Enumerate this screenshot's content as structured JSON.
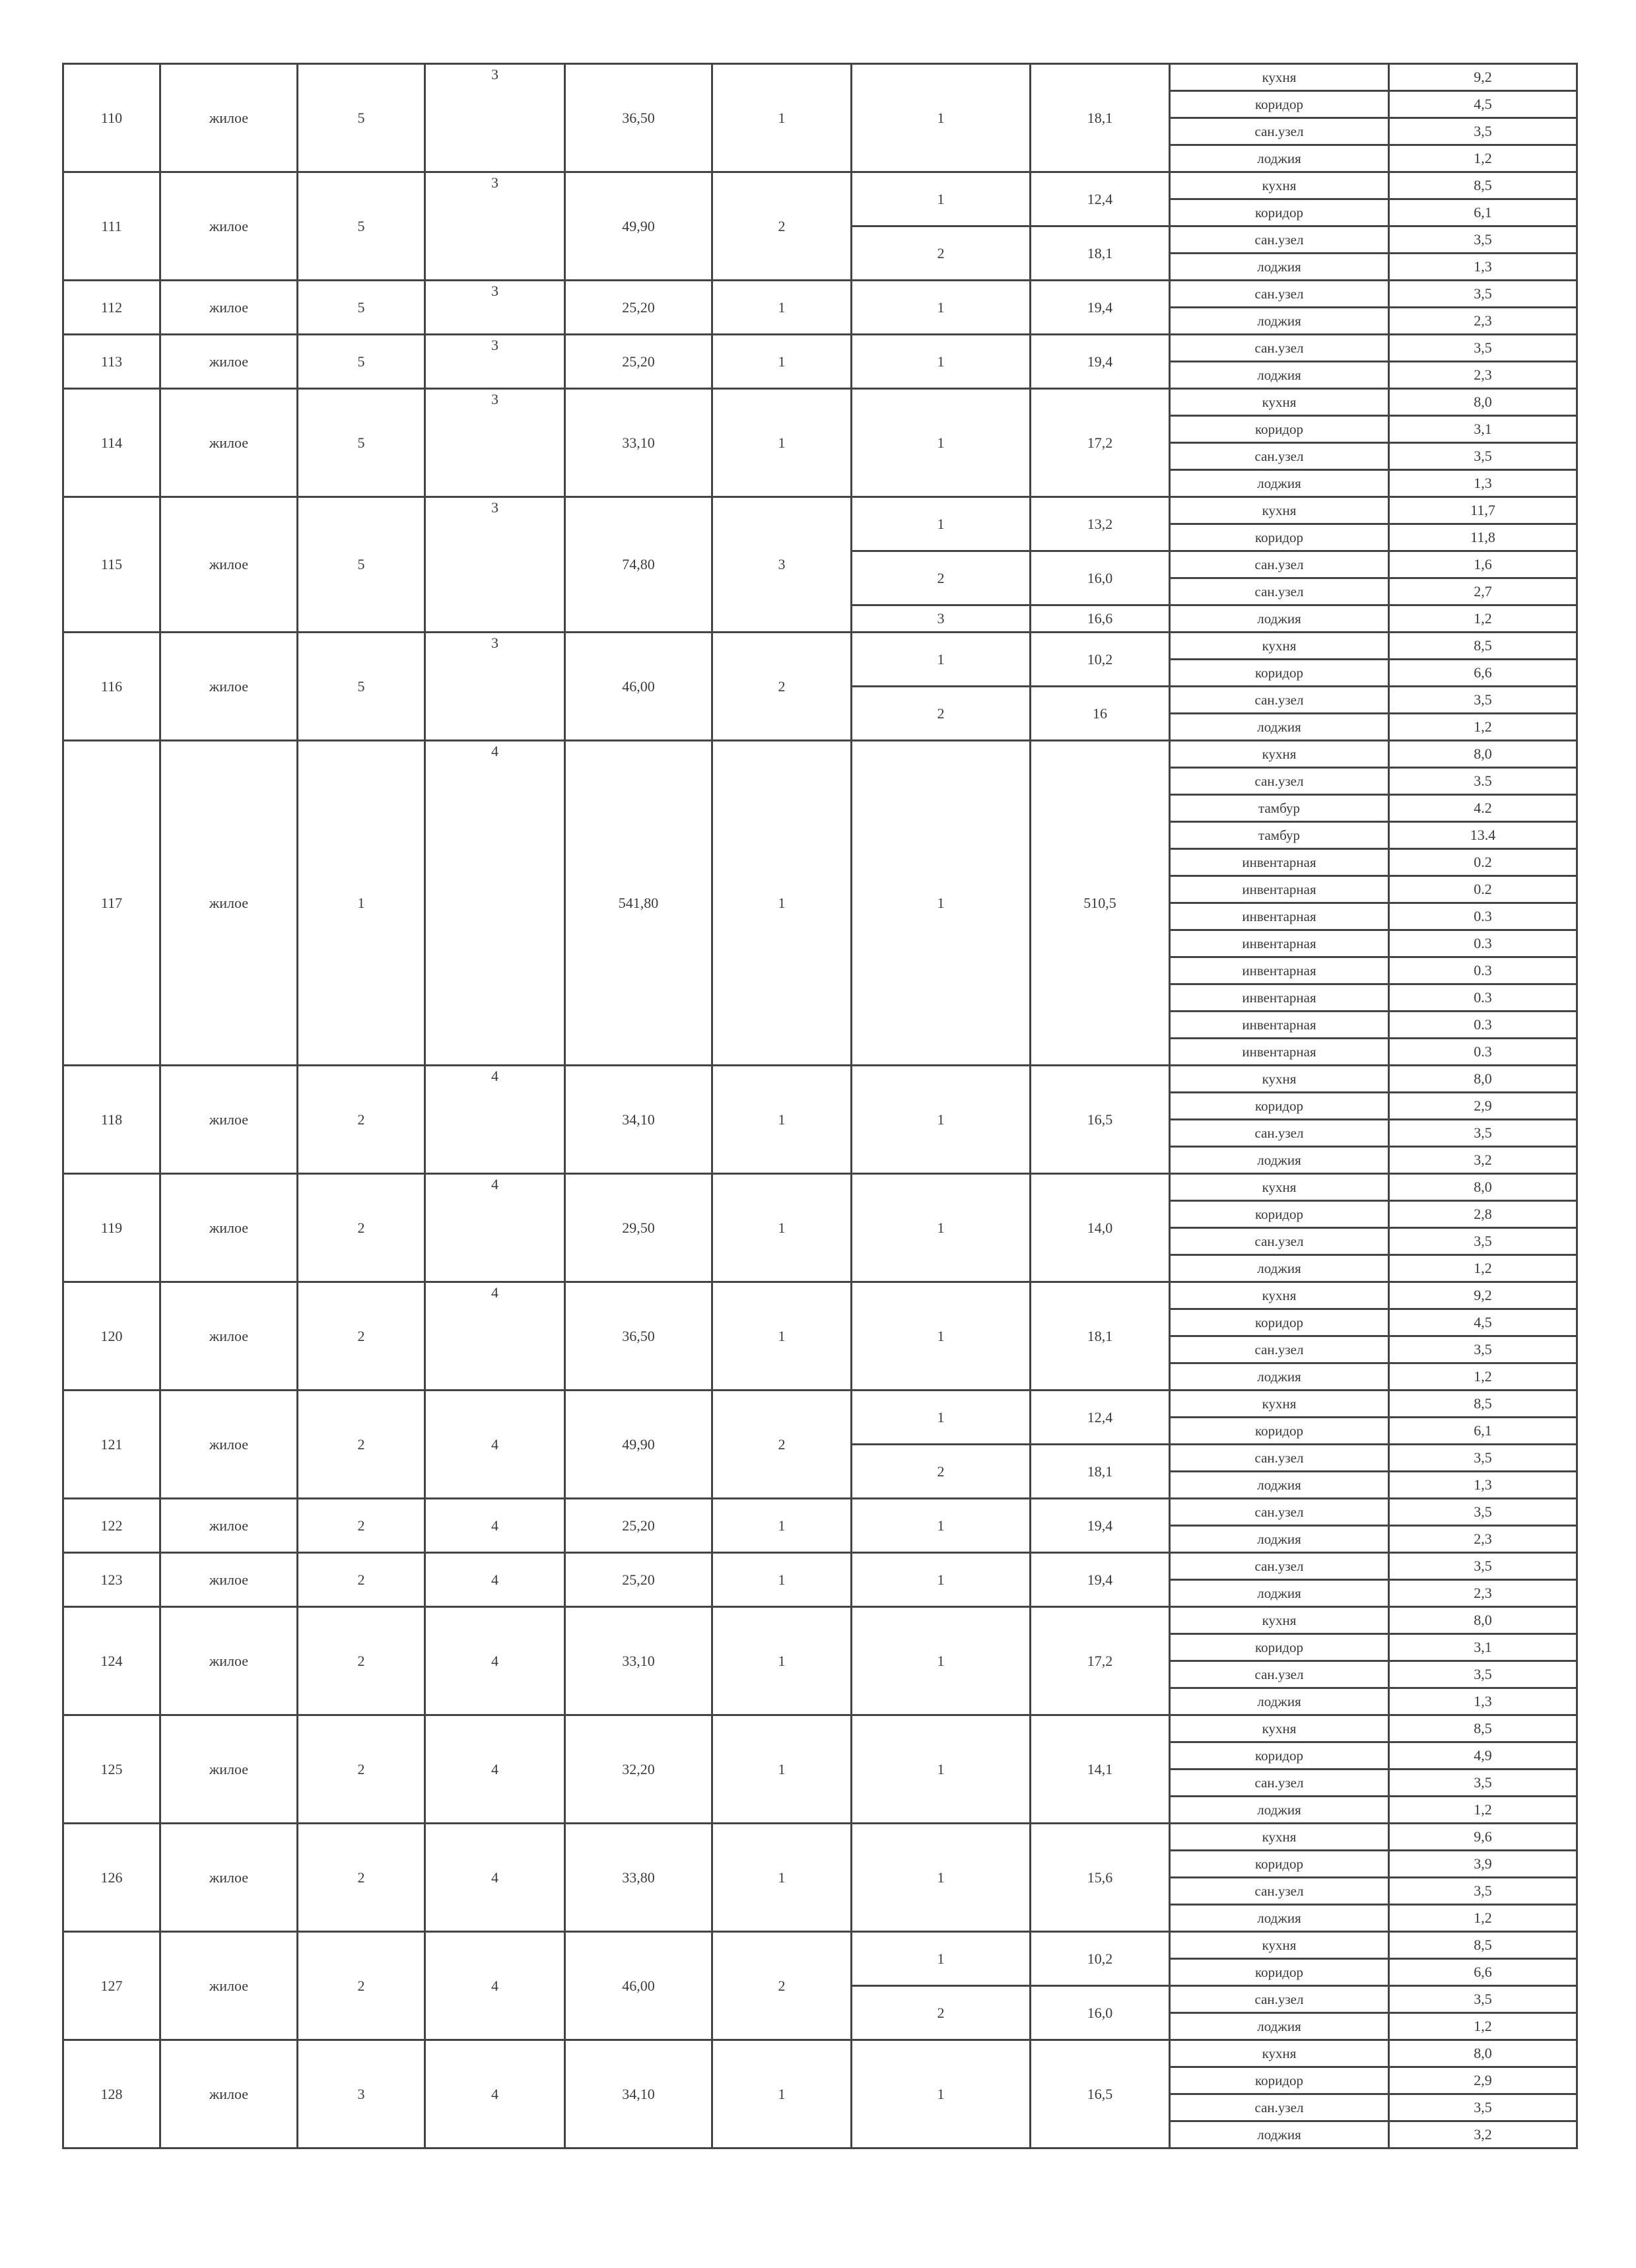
{
  "rows": [
    {
      "num": "110",
      "type": "жилое",
      "floor": "5",
      "section": "3",
      "area": "36,50",
      "rooms": "1",
      "living": [
        {
          "n": "1",
          "area": "18,1"
        }
      ],
      "aux": [
        {
          "name": "кухня",
          "area": "9,2"
        },
        {
          "name": "коридор",
          "area": "4,5"
        },
        {
          "name": "сан.узел",
          "area": "3,5"
        },
        {
          "name": "лоджия",
          "area": "1,2"
        }
      ]
    },
    {
      "num": "111",
      "type": "жилое",
      "floor": "5",
      "section": "3",
      "area": "49,90",
      "rooms": "2",
      "living": [
        {
          "n": "1",
          "area": "12,4"
        },
        {
          "n": "2",
          "area": "18,1"
        }
      ],
      "aux": [
        {
          "name": "кухня",
          "area": "8,5"
        },
        {
          "name": "коридор",
          "area": "6,1"
        },
        {
          "name": "сан.узел",
          "area": "3,5"
        },
        {
          "name": "лоджия",
          "area": "1,3"
        }
      ]
    },
    {
      "num": "112",
      "type": "жилое",
      "floor": "5",
      "section": "3",
      "area": "25,20",
      "rooms": "1",
      "living": [
        {
          "n": "1",
          "area": "19,4"
        }
      ],
      "aux": [
        {
          "name": "сан.узел",
          "area": "3,5"
        },
        {
          "name": "лоджия",
          "area": "2,3"
        }
      ]
    },
    {
      "num": "113",
      "type": "жилое",
      "floor": "5",
      "section": "3",
      "area": "25,20",
      "rooms": "1",
      "living": [
        {
          "n": "1",
          "area": "19,4"
        }
      ],
      "aux": [
        {
          "name": "сан.узел",
          "area": "3,5"
        },
        {
          "name": "лоджия",
          "area": "2,3"
        }
      ]
    },
    {
      "num": "114",
      "type": "жилое",
      "floor": "5",
      "section": "3",
      "area": "33,10",
      "rooms": "1",
      "living": [
        {
          "n": "1",
          "area": "17,2"
        }
      ],
      "aux": [
        {
          "name": "кухня",
          "area": "8,0"
        },
        {
          "name": "коридор",
          "area": "3,1"
        },
        {
          "name": "сан.узел",
          "area": "3,5"
        },
        {
          "name": "лоджия",
          "area": "1,3"
        }
      ]
    },
    {
      "num": "115",
      "type": "жилое",
      "floor": "5",
      "section": "3",
      "area": "74,80",
      "rooms": "3",
      "living": [
        {
          "n": "1",
          "area": "13,2"
        },
        {
          "n": "2",
          "area": "16,0"
        },
        {
          "n": "3",
          "area": "16,6"
        }
      ],
      "aux": [
        {
          "name": "кухня",
          "area": "11,7"
        },
        {
          "name": "коридор",
          "area": "11,8"
        },
        {
          "name": "сан.узел",
          "area": "1,6"
        },
        {
          "name": "сан.узел",
          "area": "2,7"
        },
        {
          "name": "лоджия",
          "area": "1,2"
        }
      ]
    },
    {
      "num": "116",
      "type": "жилое",
      "floor": "5",
      "section": "3",
      "area": "46,00",
      "rooms": "2",
      "living": [
        {
          "n": "1",
          "area": "10,2"
        },
        {
          "n": "2",
          "area": "16"
        }
      ],
      "aux": [
        {
          "name": "кухня",
          "area": "8,5"
        },
        {
          "name": "коридор",
          "area": "6,6"
        },
        {
          "name": "сан.узел",
          "area": "3,5"
        },
        {
          "name": "лоджия",
          "area": "1,2"
        }
      ]
    },
    {
      "num": "117",
      "type": "жилое",
      "floor": "1",
      "section": "4",
      "area": "541,80",
      "rooms": "1",
      "living": [
        {
          "n": "1",
          "area": "510,5"
        }
      ],
      "aux": [
        {
          "name": "кухня",
          "area": "8,0"
        },
        {
          "name": "сан.узел",
          "area": "3.5"
        },
        {
          "name": "тамбур",
          "area": "4.2"
        },
        {
          "name": "тамбур",
          "area": "13.4"
        },
        {
          "name": "инвентарная",
          "area": "0.2"
        },
        {
          "name": "инвентарная",
          "area": "0.2"
        },
        {
          "name": "инвентарная",
          "area": "0.3"
        },
        {
          "name": "инвентарная",
          "area": "0.3"
        },
        {
          "name": "инвентарная",
          "area": "0.3"
        },
        {
          "name": "инвентарная",
          "area": "0.3"
        },
        {
          "name": "инвентарная",
          "area": "0.3"
        },
        {
          "name": "инвентарная",
          "area": "0.3"
        }
      ]
    },
    {
      "num": "118",
      "type": "жилое",
      "floor": "2",
      "section": "4",
      "area": "34,10",
      "rooms": "1",
      "living": [
        {
          "n": "1",
          "area": "16,5"
        }
      ],
      "aux": [
        {
          "name": "кухня",
          "area": "8,0"
        },
        {
          "name": "коридор",
          "area": "2,9"
        },
        {
          "name": "сан.узел",
          "area": "3,5"
        },
        {
          "name": "лоджия",
          "area": "3,2"
        }
      ]
    },
    {
      "num": "119",
      "type": "жилое",
      "floor": "2",
      "section": "4",
      "area": "29,50",
      "rooms": "1",
      "living": [
        {
          "n": "1",
          "area": "14,0"
        }
      ],
      "aux": [
        {
          "name": "кухня",
          "area": "8,0"
        },
        {
          "name": "коридор",
          "area": "2,8"
        },
        {
          "name": "сан.узел",
          "area": "3,5"
        },
        {
          "name": "лоджия",
          "area": "1,2"
        }
      ]
    },
    {
      "num": "120",
      "type": "жилое",
      "floor": "2",
      "section": "4",
      "area": "36,50",
      "rooms": "1",
      "living": [
        {
          "n": "1",
          "area": "18,1"
        }
      ],
      "aux": [
        {
          "name": "кухня",
          "area": "9,2"
        },
        {
          "name": "коридор",
          "area": "4,5"
        },
        {
          "name": "сан.узел",
          "area": "3,5"
        },
        {
          "name": "лоджия",
          "area": "1,2"
        }
      ]
    },
    {
      "num": "121",
      "type": "жилое",
      "floor": "2",
      "section": "4",
      "area": "49,90",
      "rooms": "2",
      "living": [
        {
          "n": "1",
          "area": "12,4"
        },
        {
          "n": "2",
          "area": "18,1"
        }
      ],
      "aux": [
        {
          "name": "кухня",
          "area": "8,5"
        },
        {
          "name": "коридор",
          "area": "6,1"
        },
        {
          "name": "сан.узел",
          "area": "3,5"
        },
        {
          "name": "лоджия",
          "area": "1,3"
        }
      ]
    },
    {
      "num": "122",
      "type": "жилое",
      "floor": "2",
      "section": "4",
      "area": "25,20",
      "rooms": "1",
      "living": [
        {
          "n": "1",
          "area": "19,4"
        }
      ],
      "aux": [
        {
          "name": "сан.узел",
          "area": "3,5"
        },
        {
          "name": "лоджия",
          "area": "2,3"
        }
      ]
    },
    {
      "num": "123",
      "type": "жилое",
      "floor": "2",
      "section": "4",
      "area": "25,20",
      "rooms": "1",
      "living": [
        {
          "n": "1",
          "area": "19,4"
        }
      ],
      "aux": [
        {
          "name": "сан.узел",
          "area": "3,5"
        },
        {
          "name": "лоджия",
          "area": "2,3"
        }
      ]
    },
    {
      "num": "124",
      "type": "жилое",
      "floor": "2",
      "section": "4",
      "area": "33,10",
      "rooms": "1",
      "living": [
        {
          "n": "1",
          "area": "17,2"
        }
      ],
      "aux": [
        {
          "name": "кухня",
          "area": "8,0"
        },
        {
          "name": "коридор",
          "area": "3,1"
        },
        {
          "name": "сан.узел",
          "area": "3,5"
        },
        {
          "name": "лоджия",
          "area": "1,3"
        }
      ]
    },
    {
      "num": "125",
      "type": "жилое",
      "floor": "2",
      "section": "4",
      "area": "32,20",
      "rooms": "1",
      "living": [
        {
          "n": "1",
          "area": "14,1"
        }
      ],
      "aux": [
        {
          "name": "кухня",
          "area": "8,5"
        },
        {
          "name": "коридор",
          "area": "4,9"
        },
        {
          "name": "сан.узел",
          "area": "3,5"
        },
        {
          "name": "лоджия",
          "area": "1,2"
        }
      ]
    },
    {
      "num": "126",
      "type": "жилое",
      "floor": "2",
      "section": "4",
      "area": "33,80",
      "rooms": "1",
      "living": [
        {
          "n": "1",
          "area": "15,6"
        }
      ],
      "aux": [
        {
          "name": "кухня",
          "area": "9,6"
        },
        {
          "name": "коридор",
          "area": "3,9"
        },
        {
          "name": "сан.узел",
          "area": "3,5"
        },
        {
          "name": "лоджия",
          "area": "1,2"
        }
      ]
    },
    {
      "num": "127",
      "type": "жилое",
      "floor": "2",
      "section": "4",
      "area": "46,00",
      "rooms": "2",
      "living": [
        {
          "n": "1",
          "area": "10,2"
        },
        {
          "n": "2",
          "area": "16,0"
        }
      ],
      "aux": [
        {
          "name": "кухня",
          "area": "8,5"
        },
        {
          "name": "коридор",
          "area": "6,6"
        },
        {
          "name": "сан.узел",
          "area": "3,5"
        },
        {
          "name": "лоджия",
          "area": "1,2"
        }
      ]
    },
    {
      "num": "128",
      "type": "жилое",
      "floor": "3",
      "section": "4",
      "area": "34,10",
      "rooms": "1",
      "living": [
        {
          "n": "1",
          "area": "16,5"
        }
      ],
      "aux": [
        {
          "name": "кухня",
          "area": "8,0"
        },
        {
          "name": "коридор",
          "area": "2,9"
        },
        {
          "name": "сан.узел",
          "area": "3,5"
        },
        {
          "name": "лоджия",
          "area": "3,2"
        }
      ]
    }
  ]
}
